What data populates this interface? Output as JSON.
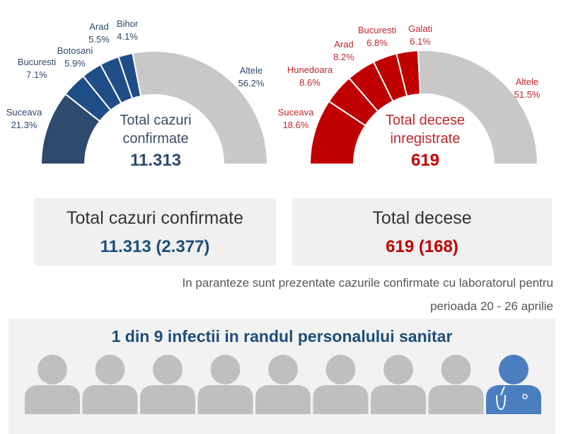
{
  "chart_data": [
    {
      "type": "pie",
      "variant": "semi-donut",
      "categories": [
        "Suceava",
        "Bucuresti",
        "Botosani",
        "Arad",
        "Bihor",
        "Altele"
      ],
      "values": [
        21.3,
        7.1,
        5.9,
        5.5,
        4.1,
        56.2
      ],
      "labels": [
        "21.3%",
        "7.1%",
        "5.9%",
        "5.5%",
        "4.1%",
        "56.2%"
      ],
      "center_title": [
        "Total cazuri",
        "confirmate"
      ],
      "center_value": "11.313",
      "colors": [
        "#2e4a6e",
        "#1f4d86",
        "#1f4d86",
        "#1f4d86",
        "#1f4d86",
        "#c8c8c8"
      ],
      "label_color": "#2e4a6e"
    },
    {
      "type": "pie",
      "variant": "semi-donut",
      "categories": [
        "Suceava",
        "Hunedoara",
        "Arad",
        "Bucuresti",
        "Galati",
        "Altele"
      ],
      "values": [
        18.6,
        8.6,
        8.2,
        6.8,
        6.1,
        51.5
      ],
      "labels": [
        "18.6%",
        "8.6%",
        "8.2%",
        "6.8%",
        "6.1%",
        "51.5%"
      ],
      "center_title": [
        "Total decese",
        "inregistrate"
      ],
      "center_value": "619",
      "colors": [
        "#c00000",
        "#c00000",
        "#c00000",
        "#c00000",
        "#c00000",
        "#c8c8c8"
      ],
      "label_color": "#c0282d"
    }
  ],
  "summary": {
    "cases": {
      "title": "Total cazuri confirmate",
      "value": "11.313 (2.377)"
    },
    "deaths": {
      "title": "Total decese",
      "value": "619 (168)"
    }
  },
  "note": {
    "line1": "In paranteze sunt prezentate cazurile confirmate cu laboratorul pentru",
    "line2": "perioada 20 - 26 aprilie"
  },
  "staff": {
    "title": "1 din 9 infectii in randul personalului sanitar",
    "total": 9,
    "highlighted": 1,
    "colors": {
      "gray": "#bfbfbf",
      "blue": "#4a7ebf"
    }
  }
}
